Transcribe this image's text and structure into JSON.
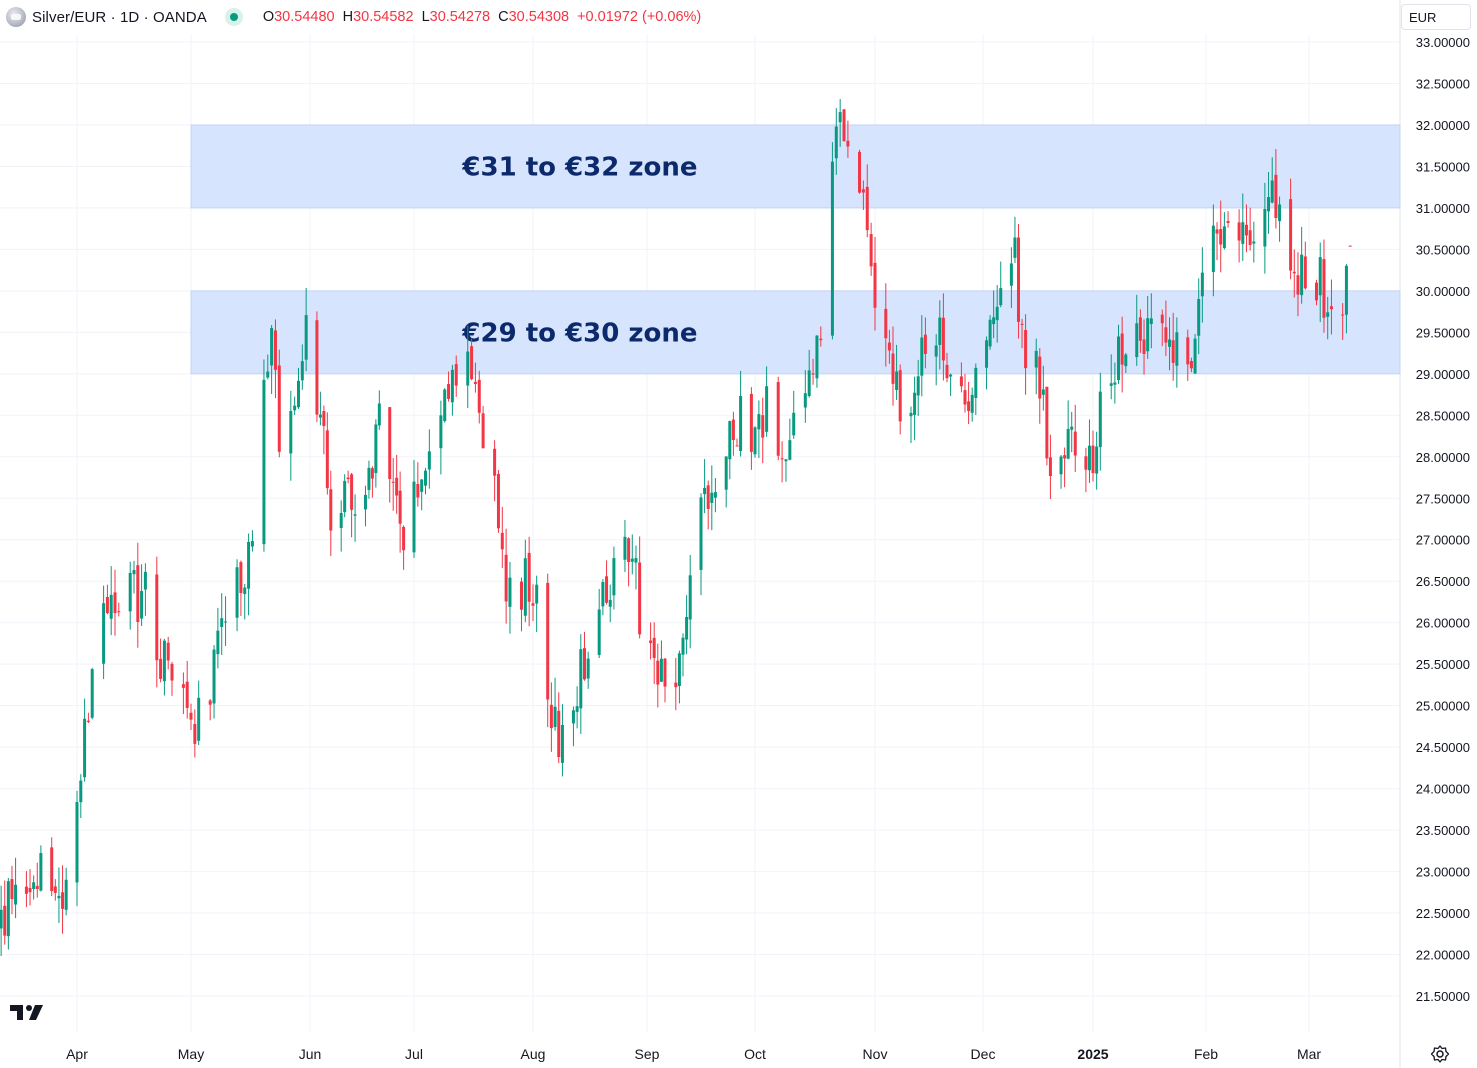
{
  "header": {
    "title": "Silver/EUR · 1D · OANDA",
    "open_label": "O",
    "open": "30.54480",
    "high_label": "H",
    "high": "30.54582",
    "low_label": "L",
    "low": "30.54278",
    "close_label": "C",
    "close": "30.54308",
    "change": "+0.01972 (+0.06%)",
    "status_icon": "market-open-dot-icon",
    "symbol_icon": "silver-coin-icon"
  },
  "currency_button": {
    "label": "EUR"
  },
  "logo_icon": "tradingview-logo-icon",
  "settings_icon": "gear-icon",
  "colors": {
    "up": "#089981",
    "down": "#f23645",
    "zone_fill": "#d6e4fd",
    "zone_text": "#0c2a6b",
    "header_value": "#f23645"
  },
  "chart_data": {
    "type": "candlestick",
    "title": "Silver/EUR · 1D · OANDA",
    "ylim": [
      21.0,
      33.0
    ],
    "y_ticks": [
      "21.50000",
      "22.00000",
      "22.50000",
      "23.00000",
      "23.50000",
      "24.00000",
      "24.50000",
      "25.00000",
      "25.50000",
      "26.00000",
      "26.50000",
      "27.00000",
      "27.50000",
      "28.00000",
      "28.50000",
      "29.00000",
      "29.50000",
      "30.00000",
      "30.50000",
      "31.00000",
      "31.50000",
      "32.00000",
      "32.50000",
      "33.00000"
    ],
    "x_ticks": [
      {
        "label": "Apr",
        "date": "2024-04-01"
      },
      {
        "label": "May",
        "date": "2024-05-01"
      },
      {
        "label": "Jun",
        "date": "2024-06-01"
      },
      {
        "label": "Jul",
        "date": "2024-07-01"
      },
      {
        "label": "Aug",
        "date": "2024-08-01"
      },
      {
        "label": "Sep",
        "date": "2024-09-01"
      },
      {
        "label": "Oct",
        "date": "2024-10-01"
      },
      {
        "label": "Nov",
        "date": "2024-11-01"
      },
      {
        "label": "Dec",
        "date": "2024-12-01"
      },
      {
        "label": "2025",
        "date": "2025-01-01",
        "bold": true
      },
      {
        "label": "Feb",
        "date": "2025-02-01"
      },
      {
        "label": "Mar",
        "date": "2025-03-01"
      }
    ],
    "zones": [
      {
        "label": "€31 to €32 zone",
        "low": 31.0,
        "high": 32.0,
        "start": "2024-05-01"
      },
      {
        "label": "€29 to €30 zone",
        "low": 29.0,
        "high": 30.0,
        "start": "2024-05-01"
      }
    ],
    "last_close": 30.54308,
    "price_path": [
      [
        "2024-03-11",
        22.3
      ],
      [
        "2024-03-14",
        22.7
      ],
      [
        "2024-03-18",
        22.9
      ],
      [
        "2024-03-21",
        23.1
      ],
      [
        "2024-03-25",
        22.8
      ],
      [
        "2024-03-28",
        22.9
      ],
      [
        "2024-04-01",
        23.6
      ],
      [
        "2024-04-04",
        25.0
      ],
      [
        "2024-04-08",
        25.9
      ],
      [
        "2024-04-12",
        26.4
      ],
      [
        "2024-04-15",
        26.6
      ],
      [
        "2024-04-17",
        26.3
      ],
      [
        "2024-04-19",
        26.8
      ],
      [
        "2024-04-22",
        25.6
      ],
      [
        "2024-04-25",
        25.5
      ],
      [
        "2024-04-29",
        25.3
      ],
      [
        "2024-05-01",
        24.6
      ],
      [
        "2024-05-03",
        24.8
      ],
      [
        "2024-05-07",
        25.5
      ],
      [
        "2024-05-10",
        26.2
      ],
      [
        "2024-05-14",
        26.4
      ],
      [
        "2024-05-17",
        27.3
      ],
      [
        "2024-05-20",
        29.0
      ],
      [
        "2024-05-22",
        29.5
      ],
      [
        "2024-05-24",
        28.2
      ],
      [
        "2024-05-28",
        28.9
      ],
      [
        "2024-05-31",
        29.5
      ],
      [
        "2024-06-04",
        28.6
      ],
      [
        "2024-06-07",
        27.3
      ],
      [
        "2024-06-11",
        27.7
      ],
      [
        "2024-06-14",
        27.3
      ],
      [
        "2024-06-18",
        27.6
      ],
      [
        "2024-06-21",
        28.6
      ],
      [
        "2024-06-25",
        27.4
      ],
      [
        "2024-06-28",
        27.1
      ],
      [
        "2024-07-02",
        27.6
      ],
      [
        "2024-07-05",
        28.2
      ],
      [
        "2024-07-09",
        28.5
      ],
      [
        "2024-07-12",
        28.8
      ],
      [
        "2024-07-16",
        29.0
      ],
      [
        "2024-07-19",
        28.1
      ],
      [
        "2024-07-22",
        27.9
      ],
      [
        "2024-07-25",
        26.6
      ],
      [
        "2024-07-29",
        26.4
      ],
      [
        "2024-08-01",
        26.5
      ],
      [
        "2024-08-05",
        25.2
      ],
      [
        "2024-08-08",
        24.4
      ],
      [
        "2024-08-12",
        25.1
      ],
      [
        "2024-08-16",
        25.6
      ],
      [
        "2024-08-20",
        26.3
      ],
      [
        "2024-08-23",
        26.6
      ],
      [
        "2024-08-27",
        26.9
      ],
      [
        "2024-08-30",
        26.2
      ],
      [
        "2024-09-03",
        25.6
      ],
      [
        "2024-09-06",
        25.2
      ],
      [
        "2024-09-10",
        25.6
      ],
      [
        "2024-09-13",
        26.6
      ],
      [
        "2024-09-17",
        27.4
      ],
      [
        "2024-09-20",
        27.8
      ],
      [
        "2024-09-24",
        28.2
      ],
      [
        "2024-09-27",
        28.5
      ],
      [
        "2024-10-01",
        28.3
      ],
      [
        "2024-10-04",
        28.7
      ],
      [
        "2024-10-08",
        28.0
      ],
      [
        "2024-10-11",
        28.6
      ],
      [
        "2024-10-15",
        28.7
      ],
      [
        "2024-10-18",
        29.6
      ],
      [
        "2024-10-21",
        31.3
      ],
      [
        "2024-10-23",
        32.0
      ],
      [
        "2024-10-25",
        31.4
      ],
      [
        "2024-10-29",
        31.2
      ],
      [
        "2024-10-31",
        30.1
      ],
      [
        "2024-11-04",
        29.6
      ],
      [
        "2024-11-06",
        28.9
      ],
      [
        "2024-11-08",
        28.7
      ],
      [
        "2024-11-12",
        28.8
      ],
      [
        "2024-11-15",
        29.3
      ],
      [
        "2024-11-19",
        29.5
      ],
      [
        "2024-11-22",
        29.1
      ],
      [
        "2024-11-26",
        28.6
      ],
      [
        "2024-11-29",
        29.0
      ],
      [
        "2024-12-03",
        29.4
      ],
      [
        "2024-12-06",
        30.1
      ],
      [
        "2024-12-10",
        30.3
      ],
      [
        "2024-12-13",
        29.2
      ],
      [
        "2024-12-17",
        28.9
      ],
      [
        "2024-12-20",
        27.9
      ],
      [
        "2024-12-24",
        28.3
      ],
      [
        "2024-12-27",
        28.1
      ],
      [
        "2024-12-31",
        27.9
      ],
      [
        "2025-01-03",
        28.6
      ],
      [
        "2025-01-07",
        29.0
      ],
      [
        "2025-01-10",
        29.4
      ],
      [
        "2025-01-14",
        29.3
      ],
      [
        "2025-01-17",
        29.8
      ],
      [
        "2025-01-21",
        29.1
      ],
      [
        "2025-01-24",
        29.3
      ],
      [
        "2025-01-28",
        28.9
      ],
      [
        "2025-01-31",
        30.3
      ],
      [
        "2025-02-04",
        30.7
      ],
      [
        "2025-02-07",
        30.9
      ],
      [
        "2025-02-11",
        30.8
      ],
      [
        "2025-02-14",
        30.9
      ],
      [
        "2025-02-18",
        31.2
      ],
      [
        "2025-02-21",
        31.1
      ],
      [
        "2025-02-25",
        30.3
      ],
      [
        "2025-02-28",
        30.0
      ],
      [
        "2025-03-04",
        30.1
      ],
      [
        "2025-03-07",
        29.8
      ],
      [
        "2025-03-10",
        29.7
      ],
      [
        "2025-03-12",
        30.54308
      ]
    ]
  }
}
